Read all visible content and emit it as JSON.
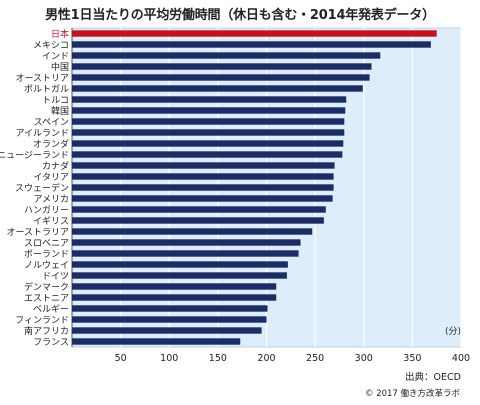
{
  "title": "男性1日当たりの平均労働時間（休日も含む・2014年発表データ）",
  "unit_label": "(分)",
  "source": "出典：OECD",
  "copyright": "© 2017 働き方改革ラボ",
  "colors": {
    "bar": "#1a2d66",
    "highlight": "#c8101e",
    "plot_bg": "#ddeefa"
  },
  "chart_data": {
    "type": "bar",
    "orientation": "horizontal",
    "title": "男性1日当たりの平均労働時間（休日も含む・2014年発表データ）",
    "xlabel": "(分)",
    "xlim": [
      0,
      400
    ],
    "xticks": [
      50,
      100,
      150,
      200,
      250,
      300,
      350,
      400
    ],
    "grid": true,
    "highlight_category": "日本",
    "categories": [
      "日本",
      "メキシコ",
      "インド",
      "中国",
      "オーストリア",
      "ポルトガル",
      "トルコ",
      "韓国",
      "スペイン",
      "アイルランド",
      "オランダ",
      "ニュージーランド",
      "カナダ",
      "イタリア",
      "スウェーデン",
      "アメリカ",
      "ハンガリー",
      "イギリス",
      "オーストラリア",
      "スロベニア",
      "ポーランド",
      "ノルウェイ",
      "ドイツ",
      "デンマーク",
      "エストニア",
      "ベルギー",
      "フィンランド",
      "南アフリカ",
      "フランス"
    ],
    "values": [
      375,
      369,
      317,
      308,
      306,
      299,
      282,
      281,
      280,
      280,
      279,
      278,
      270,
      269,
      269,
      268,
      261,
      259,
      247,
      235,
      233,
      222,
      221,
      210,
      210,
      201,
      200,
      195,
      173
    ]
  }
}
